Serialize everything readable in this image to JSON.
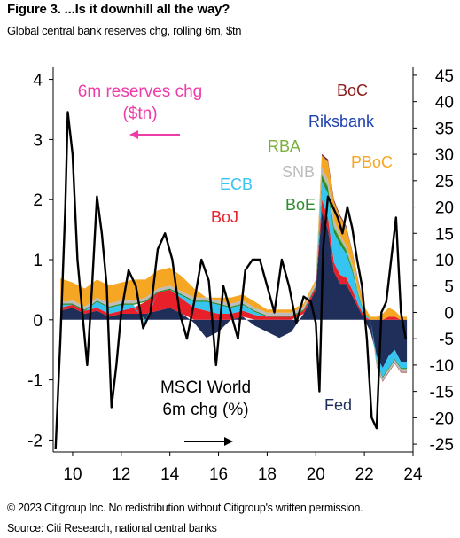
{
  "figure": {
    "title": "Figure 3. ...Is it downhill all the way?",
    "subtitle": "Global central bank reserves chg, rolling 6m, $tn"
  },
  "footer": {
    "copyright": "© 2023 Citigroup Inc. No redistribution without Citigroup's written permission.",
    "source": "Source: Citi Research, national central banks"
  },
  "annotations": {
    "reserves_label_line1": "6m reserves chg",
    "reserves_label_line2": "($tn)",
    "msci_label_line1": "MSCI World",
    "msci_label_line2": "6m chg (%)"
  },
  "colors": {
    "Fed": "#1f2f5a",
    "BoJ": "#e8202a",
    "ECB": "#36c4f0",
    "BoE": "#2e8b2e",
    "RBA": "#7ab03c",
    "SNB": "#bcbcbc",
    "PBoC": "#f5a623",
    "Riksbank": "#1e3fae",
    "BoC": "#8b1a1a",
    "MSCI": "#000000",
    "reserves_arrow": "#ee3ca8"
  },
  "chart_data": {
    "type": "area",
    "title": "Global central bank reserves chg, rolling 6m, $tn",
    "xlabel": "",
    "xlim": [
      9.2,
      24.0
    ],
    "x_ticks": [
      "10",
      "12",
      "14",
      "16",
      "18",
      "20",
      "22",
      "24"
    ],
    "x_tick_values": [
      10,
      12,
      14,
      16,
      18,
      20,
      22,
      24
    ],
    "y_left": {
      "label": "6m reserves chg ($tn)",
      "ylim": [
        -2.2,
        4.2
      ],
      "ticks": [
        "4",
        "3",
        "2",
        "1",
        "0",
        "-1",
        "-2"
      ],
      "tick_values": [
        4,
        3,
        2,
        1,
        0,
        -1,
        -2
      ]
    },
    "y_right": {
      "label": "MSCI World 6m chg (%)",
      "ylim": [
        -26.5,
        46.5
      ],
      "ticks": [
        "45",
        "40",
        "35",
        "30",
        "25",
        "20",
        "15",
        "10",
        "5",
        "0",
        "-5",
        "-10",
        "-15",
        "-20",
        "-25"
      ],
      "tick_values": [
        45,
        40,
        35,
        30,
        25,
        20,
        15,
        10,
        5,
        0,
        -5,
        -10,
        -15,
        -20,
        -25
      ]
    },
    "x": [
      9.5,
      10.0,
      10.5,
      11.0,
      11.5,
      12.0,
      12.5,
      13.0,
      13.5,
      14.0,
      14.5,
      15.0,
      15.5,
      16.0,
      16.5,
      17.0,
      17.5,
      18.0,
      18.5,
      19.0,
      19.5,
      20.0,
      20.25,
      20.5,
      20.75,
      21.0,
      21.25,
      21.5,
      21.75,
      22.0,
      22.25,
      22.5,
      22.75,
      23.0,
      23.25,
      23.5,
      23.75
    ],
    "series": [
      {
        "name": "Fed",
        "axis": "left",
        "values": [
          0.15,
          0.2,
          0.1,
          0.15,
          0.05,
          0.1,
          0.1,
          0.1,
          0.15,
          0.2,
          0.1,
          -0.05,
          -0.3,
          -0.2,
          0.0,
          0.05,
          -0.1,
          -0.2,
          -0.3,
          -0.2,
          0.1,
          0.5,
          1.8,
          1.5,
          0.8,
          0.6,
          0.6,
          0.4,
          0.2,
          0.0,
          -0.2,
          -0.6,
          -0.8,
          -0.6,
          -0.5,
          -0.7,
          -0.7
        ]
      },
      {
        "name": "BoJ",
        "axis": "left",
        "values": [
          0.05,
          0.05,
          0.05,
          0.05,
          0.05,
          0.05,
          0.1,
          0.2,
          0.3,
          0.3,
          0.25,
          0.2,
          0.15,
          0.1,
          0.1,
          0.1,
          0.08,
          0.05,
          0.05,
          0.05,
          0.05,
          0.05,
          0.2,
          0.2,
          0.15,
          0.15,
          0.1,
          0.1,
          0.05,
          0.05,
          0.0,
          0.0,
          0.0,
          0.05,
          0.05,
          0.0,
          0.0
        ]
      },
      {
        "name": "ECB",
        "axis": "left",
        "values": [
          0.05,
          0.0,
          0.0,
          0.1,
          0.1,
          0.1,
          0.05,
          -0.05,
          0.0,
          0.0,
          0.05,
          0.1,
          0.15,
          0.15,
          0.1,
          0.1,
          0.05,
          0.0,
          0.0,
          0.0,
          0.0,
          0.0,
          0.3,
          0.4,
          0.5,
          0.5,
          0.4,
          0.3,
          0.15,
          0.05,
          0.0,
          -0.1,
          -0.15,
          -0.2,
          -0.15,
          -0.1,
          -0.1
        ]
      },
      {
        "name": "BoE",
        "axis": "left",
        "values": [
          0.02,
          0.02,
          0.02,
          0.02,
          0.02,
          0.02,
          0.02,
          0.02,
          0.02,
          0.02,
          0.02,
          0.02,
          0.02,
          0.02,
          0.02,
          0.02,
          0.02,
          0.02,
          0.02,
          0.02,
          0.02,
          0.02,
          0.1,
          0.1,
          0.08,
          0.08,
          0.05,
          0.05,
          0.03,
          0.02,
          0.0,
          -0.02,
          -0.02,
          -0.02,
          -0.02,
          -0.02,
          -0.02
        ]
      },
      {
        "name": "RBA",
        "axis": "left",
        "values": [
          0.0,
          0.0,
          0.0,
          0.0,
          0.0,
          0.0,
          0.0,
          0.0,
          0.0,
          0.0,
          0.0,
          0.0,
          0.0,
          0.0,
          0.0,
          0.0,
          0.0,
          0.0,
          0.0,
          0.0,
          0.0,
          0.0,
          0.03,
          0.03,
          0.03,
          0.03,
          0.03,
          0.03,
          0.02,
          0.0,
          0.0,
          0.0,
          0.0,
          0.0,
          0.0,
          0.0,
          0.0
        ]
      },
      {
        "name": "SNB",
        "axis": "left",
        "values": [
          0.02,
          0.05,
          0.05,
          0.05,
          0.05,
          0.05,
          0.05,
          0.05,
          0.05,
          0.05,
          0.05,
          0.05,
          0.05,
          0.05,
          0.05,
          0.05,
          0.05,
          0.05,
          0.05,
          0.05,
          0.05,
          0.05,
          0.1,
          0.1,
          0.1,
          0.05,
          0.05,
          0.05,
          0.03,
          0.0,
          0.0,
          -0.05,
          -0.05,
          -0.05,
          -0.05,
          -0.05,
          -0.05
        ]
      },
      {
        "name": "PBoC",
        "axis": "left",
        "values": [
          0.4,
          0.3,
          0.3,
          0.3,
          0.3,
          0.3,
          0.35,
          0.3,
          0.3,
          0.3,
          0.25,
          0.15,
          0.0,
          0.05,
          0.1,
          0.1,
          0.1,
          0.05,
          0.05,
          0.05,
          0.05,
          0.05,
          0.2,
          0.3,
          0.3,
          0.3,
          0.3,
          0.2,
          0.15,
          0.1,
          0.05,
          0.05,
          0.1,
          0.15,
          0.1,
          0.05,
          0.05
        ]
      },
      {
        "name": "Riksbank",
        "axis": "left",
        "values": [
          0.0,
          0.0,
          0.0,
          0.0,
          0.0,
          0.0,
          0.0,
          0.0,
          0.0,
          0.0,
          0.0,
          0.0,
          0.0,
          0.0,
          0.0,
          0.0,
          0.0,
          0.0,
          0.0,
          0.0,
          0.0,
          0.0,
          0.01,
          0.01,
          0.01,
          0.01,
          0.01,
          0.01,
          0.01,
          0.0,
          0.0,
          0.0,
          0.0,
          0.0,
          0.0,
          0.0,
          0.0
        ]
      },
      {
        "name": "BoC",
        "axis": "left",
        "values": [
          0.0,
          0.0,
          0.0,
          0.0,
          0.0,
          0.0,
          0.0,
          0.0,
          0.0,
          0.0,
          0.0,
          0.0,
          0.0,
          0.0,
          0.0,
          0.0,
          0.0,
          0.0,
          0.0,
          0.0,
          0.0,
          0.0,
          0.02,
          0.03,
          0.03,
          0.02,
          0.02,
          0.01,
          0.01,
          0.0,
          0.0,
          -0.01,
          -0.01,
          -0.01,
          -0.01,
          -0.01,
          -0.01
        ]
      }
    ],
    "line_series": {
      "name": "MSCI World 6m chg (%)",
      "axis": "right",
      "x": [
        9.3,
        9.5,
        9.7,
        9.8,
        10.0,
        10.2,
        10.4,
        10.6,
        10.8,
        11.0,
        11.2,
        11.4,
        11.6,
        11.8,
        12.0,
        12.3,
        12.6,
        12.9,
        13.2,
        13.5,
        13.8,
        14.1,
        14.4,
        14.7,
        15.0,
        15.3,
        15.6,
        15.9,
        16.2,
        16.5,
        16.8,
        17.1,
        17.4,
        17.7,
        18.0,
        18.3,
        18.6,
        18.9,
        19.2,
        19.5,
        19.8,
        20.0,
        20.15,
        20.3,
        20.5,
        20.7,
        20.9,
        21.1,
        21.3,
        21.5,
        21.7,
        21.9,
        22.1,
        22.3,
        22.5,
        22.7,
        22.9,
        23.1,
        23.3,
        23.5,
        23.7
      ],
      "values": [
        -26,
        -5,
        20,
        38,
        30,
        10,
        0,
        -10,
        5,
        22,
        15,
        5,
        -18,
        -10,
        0,
        8,
        5,
        -3,
        0,
        12,
        15,
        10,
        0,
        -5,
        2,
        10,
        6,
        -10,
        5,
        0,
        -5,
        8,
        10,
        10,
        5,
        0,
        10,
        5,
        -2,
        3,
        2,
        -2,
        -15,
        12,
        22,
        20,
        18,
        15,
        20,
        16,
        10,
        5,
        -5,
        -20,
        -22,
        0,
        2,
        10,
        18,
        0,
        -5
      ]
    },
    "legend": [
      "BoC",
      "Riksbank",
      "RBA",
      "SNB",
      "PBoC",
      "ECB",
      "BoE",
      "BoJ",
      "Fed"
    ]
  }
}
